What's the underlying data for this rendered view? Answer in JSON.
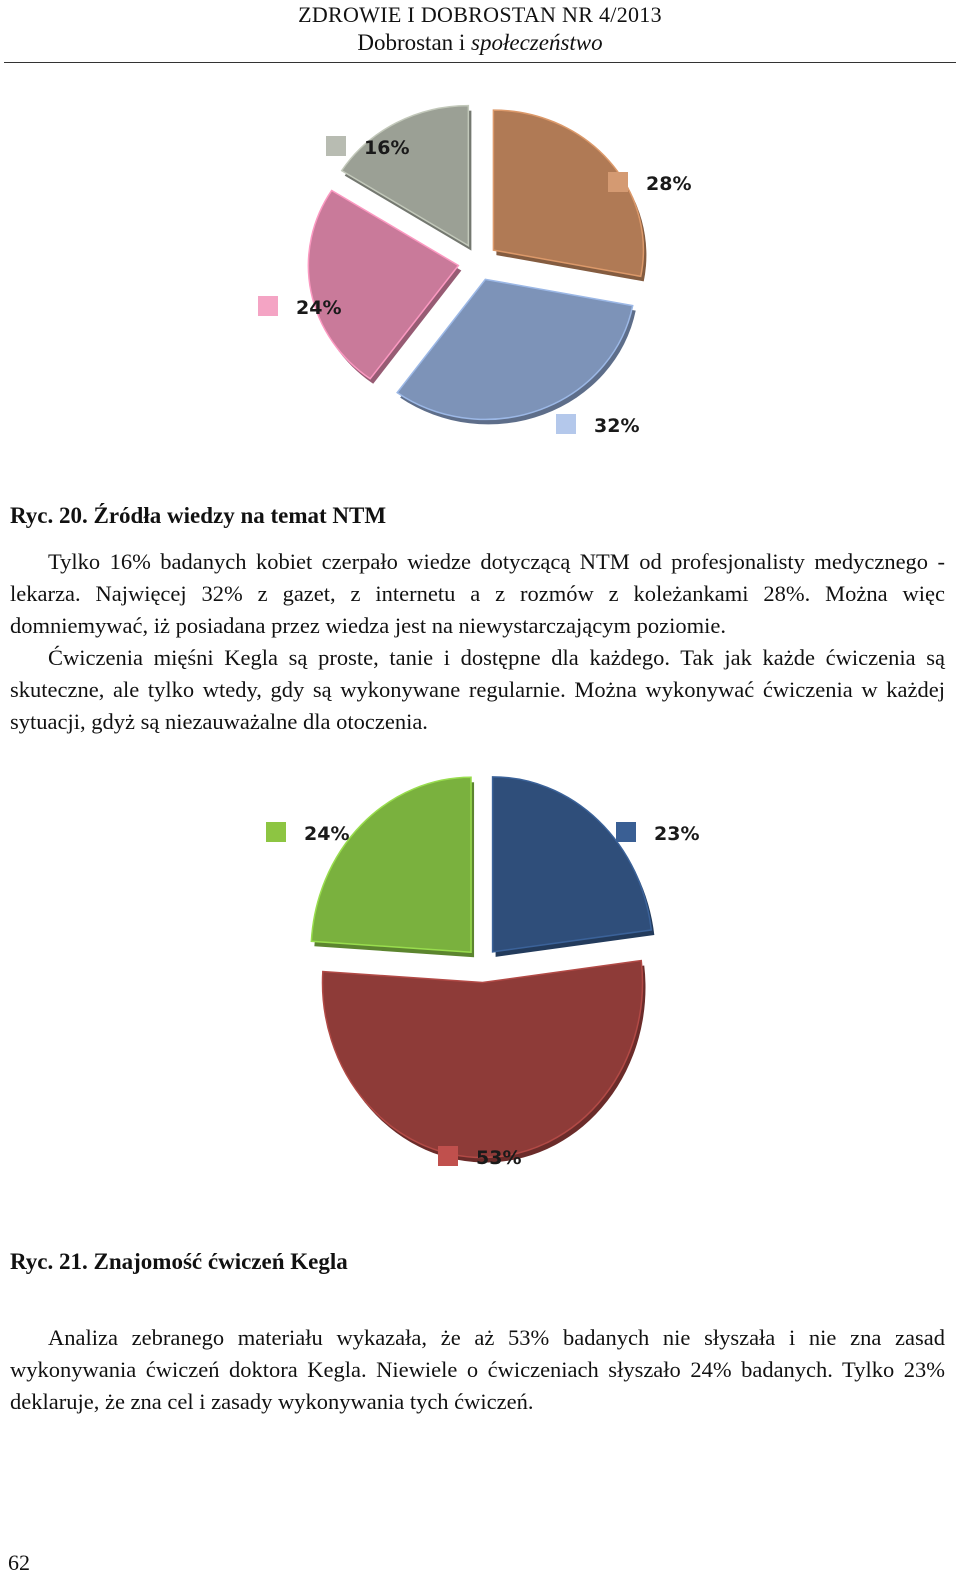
{
  "header": {
    "journal": "ZDROWIE I DOBROSTAN NR 4/2013",
    "section_plain": "Dobrostan i ",
    "section_italic": "społeczeństwo"
  },
  "figure1": {
    "caption": "Ryc. 20. Źródła wiedzy na temat NTM",
    "chart_data": {
      "type": "pie",
      "values": [
        28,
        32,
        24,
        16
      ],
      "labels": [
        "28%",
        "32%",
        "24%",
        "16%"
      ],
      "colors": [
        "#b07a55",
        "#7d93b8",
        "#c97a9a",
        "#9ba095"
      ],
      "legend_colors": [
        "#d49a72",
        "#b4c8eb",
        "#f4a4c4",
        "#b8bcb2"
      ],
      "title": "",
      "exploded": true
    }
  },
  "paragraph1": [
    "Tylko 16% badanych kobiet czerpało wiedze dotyczącą NTM od profesjonalisty medycznego - lekarza. Najwięcej 32% z gazet, z internetu a z rozmów z koleżankami 28%. Można więc domniemywać, iż posiadana przez wiedza jest na niewystarczającym poziomie.",
    "Ćwiczenia mięśni Kegla są proste, tanie i dostępne dla każdego. Tak jak każde ćwiczenia są skuteczne, ale tylko wtedy, gdy są wykonywane regularnie. Można wykonywać ćwiczenia w każdej sytuacji, gdyż są niezauważalne dla otoczenia."
  ],
  "figure2": {
    "caption": "Ryc. 21. Znajomość ćwiczeń Kegla",
    "chart_data": {
      "type": "pie",
      "values": [
        23,
        53,
        24
      ],
      "labels": [
        "23%",
        "53%",
        "24%"
      ],
      "colors": [
        "#2f4e7a",
        "#8e3b38",
        "#7ab13e"
      ],
      "legend_colors": [
        "#3a5f94",
        "#c0504d",
        "#8dc542"
      ],
      "title": "",
      "exploded": true
    }
  },
  "paragraph2": [
    "Analiza zebranego materiału wykazała, że aż 53% badanych nie słyszała i nie zna zasad wykonywania ćwiczeń doktora Kegla. Niewiele o ćwiczeniach słyszało 24% badanych. Tylko 23% deklaruje, że zna cel i zasady wykonywania tych ćwiczeń."
  ],
  "page_number": "62"
}
